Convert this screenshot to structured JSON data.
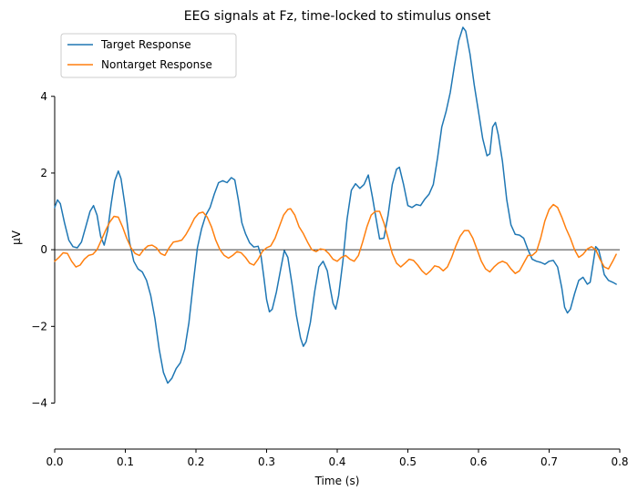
{
  "chart_data": {
    "type": "line",
    "title": "EEG signals at Fz, time-locked to stimulus onset",
    "xlabel": "Time (s)",
    "ylabel": "μV",
    "xlim": [
      0.0,
      0.8
    ],
    "ylim": [
      -5.2,
      5.8
    ],
    "xticks": [
      "0.0",
      "0.1",
      "0.2",
      "0.3",
      "0.4",
      "0.5",
      "0.6",
      "0.7",
      "0.8"
    ],
    "xtick_values": [
      0.0,
      0.1,
      0.2,
      0.3,
      0.4,
      0.5,
      0.6,
      0.7,
      0.8
    ],
    "yticks": [
      "−4",
      "−2",
      "0",
      "2",
      "4"
    ],
    "ytick_values": [
      -4,
      -2,
      0,
      2,
      4
    ],
    "grid": false,
    "zero_line": true,
    "legend_position": "top-left",
    "series": [
      {
        "name": "Target Response",
        "color": "#1f77b4",
        "points": [
          [
            0.0,
            1.1
          ],
          [
            0.004,
            1.3
          ],
          [
            0.008,
            1.2
          ],
          [
            0.014,
            0.7
          ],
          [
            0.02,
            0.25
          ],
          [
            0.026,
            0.08
          ],
          [
            0.032,
            0.05
          ],
          [
            0.038,
            0.2
          ],
          [
            0.044,
            0.6
          ],
          [
            0.05,
            1.0
          ],
          [
            0.055,
            1.15
          ],
          [
            0.06,
            0.9
          ],
          [
            0.065,
            0.35
          ],
          [
            0.07,
            0.12
          ],
          [
            0.075,
            0.5
          ],
          [
            0.08,
            1.2
          ],
          [
            0.085,
            1.8
          ],
          [
            0.09,
            2.05
          ],
          [
            0.094,
            1.85
          ],
          [
            0.1,
            1.1
          ],
          [
            0.106,
            0.2
          ],
          [
            0.112,
            -0.3
          ],
          [
            0.118,
            -0.5
          ],
          [
            0.124,
            -0.58
          ],
          [
            0.13,
            -0.8
          ],
          [
            0.136,
            -1.2
          ],
          [
            0.142,
            -1.8
          ],
          [
            0.148,
            -2.6
          ],
          [
            0.154,
            -3.2
          ],
          [
            0.16,
            -3.48
          ],
          [
            0.166,
            -3.35
          ],
          [
            0.172,
            -3.1
          ],
          [
            0.178,
            -2.95
          ],
          [
            0.184,
            -2.6
          ],
          [
            0.19,
            -1.9
          ],
          [
            0.196,
            -0.9
          ],
          [
            0.202,
            0.05
          ],
          [
            0.208,
            0.55
          ],
          [
            0.214,
            0.9
          ],
          [
            0.22,
            1.1
          ],
          [
            0.226,
            1.45
          ],
          [
            0.232,
            1.75
          ],
          [
            0.238,
            1.8
          ],
          [
            0.244,
            1.75
          ],
          [
            0.25,
            1.88
          ],
          [
            0.255,
            1.82
          ],
          [
            0.26,
            1.3
          ],
          [
            0.265,
            0.7
          ],
          [
            0.27,
            0.42
          ],
          [
            0.276,
            0.18
          ],
          [
            0.282,
            0.07
          ],
          [
            0.288,
            0.09
          ],
          [
            0.292,
            -0.15
          ],
          [
            0.296,
            -0.7
          ],
          [
            0.3,
            -1.3
          ],
          [
            0.304,
            -1.62
          ],
          [
            0.308,
            -1.55
          ],
          [
            0.314,
            -1.1
          ],
          [
            0.32,
            -0.5
          ],
          [
            0.325,
            -0.02
          ],
          [
            0.33,
            -0.2
          ],
          [
            0.336,
            -0.9
          ],
          [
            0.342,
            -1.7
          ],
          [
            0.348,
            -2.3
          ],
          [
            0.352,
            -2.52
          ],
          [
            0.356,
            -2.4
          ],
          [
            0.362,
            -1.9
          ],
          [
            0.368,
            -1.1
          ],
          [
            0.374,
            -0.45
          ],
          [
            0.38,
            -0.3
          ],
          [
            0.386,
            -0.55
          ],
          [
            0.39,
            -1.0
          ],
          [
            0.394,
            -1.4
          ],
          [
            0.398,
            -1.55
          ],
          [
            0.402,
            -1.2
          ],
          [
            0.408,
            -0.3
          ],
          [
            0.414,
            0.8
          ],
          [
            0.42,
            1.55
          ],
          [
            0.426,
            1.72
          ],
          [
            0.432,
            1.6
          ],
          [
            0.438,
            1.7
          ],
          [
            0.444,
            1.95
          ],
          [
            0.45,
            1.35
          ],
          [
            0.456,
            0.7
          ],
          [
            0.46,
            0.28
          ],
          [
            0.466,
            0.3
          ],
          [
            0.472,
            0.9
          ],
          [
            0.478,
            1.7
          ],
          [
            0.484,
            2.1
          ],
          [
            0.488,
            2.15
          ],
          [
            0.494,
            1.7
          ],
          [
            0.5,
            1.15
          ],
          [
            0.506,
            1.1
          ],
          [
            0.512,
            1.18
          ],
          [
            0.518,
            1.15
          ],
          [
            0.524,
            1.32
          ],
          [
            0.53,
            1.45
          ],
          [
            0.536,
            1.7
          ],
          [
            0.542,
            2.4
          ],
          [
            0.548,
            3.2
          ],
          [
            0.554,
            3.6
          ],
          [
            0.56,
            4.1
          ],
          [
            0.566,
            4.8
          ],
          [
            0.572,
            5.45
          ],
          [
            0.578,
            5.8
          ],
          [
            0.582,
            5.7
          ],
          [
            0.588,
            5.1
          ],
          [
            0.594,
            4.3
          ],
          [
            0.6,
            3.6
          ],
          [
            0.606,
            2.9
          ],
          [
            0.612,
            2.45
          ],
          [
            0.616,
            2.5
          ],
          [
            0.62,
            3.2
          ],
          [
            0.624,
            3.32
          ],
          [
            0.628,
            3.0
          ],
          [
            0.634,
            2.3
          ],
          [
            0.64,
            1.3
          ],
          [
            0.646,
            0.65
          ],
          [
            0.652,
            0.4
          ],
          [
            0.658,
            0.38
          ],
          [
            0.664,
            0.3
          ],
          [
            0.67,
            0.0
          ],
          [
            0.676,
            -0.25
          ],
          [
            0.682,
            -0.3
          ],
          [
            0.688,
            -0.33
          ],
          [
            0.694,
            -0.38
          ],
          [
            0.7,
            -0.3
          ],
          [
            0.706,
            -0.28
          ],
          [
            0.712,
            -0.45
          ],
          [
            0.718,
            -1.0
          ],
          [
            0.722,
            -1.5
          ],
          [
            0.726,
            -1.65
          ],
          [
            0.73,
            -1.55
          ],
          [
            0.736,
            -1.15
          ],
          [
            0.742,
            -0.8
          ],
          [
            0.748,
            -0.72
          ],
          [
            0.754,
            -0.9
          ],
          [
            0.758,
            -0.85
          ],
          [
            0.762,
            -0.4
          ],
          [
            0.766,
            0.08
          ],
          [
            0.77,
            0.0
          ],
          [
            0.774,
            -0.3
          ],
          [
            0.778,
            -0.65
          ],
          [
            0.784,
            -0.8
          ],
          [
            0.79,
            -0.85
          ],
          [
            0.795,
            -0.9
          ]
        ]
      },
      {
        "name": "Nontarget Response",
        "color": "#ff7f0e",
        "points": [
          [
            0.0,
            -0.3
          ],
          [
            0.006,
            -0.2
          ],
          [
            0.012,
            -0.08
          ],
          [
            0.018,
            -0.1
          ],
          [
            0.024,
            -0.3
          ],
          [
            0.03,
            -0.45
          ],
          [
            0.036,
            -0.4
          ],
          [
            0.042,
            -0.25
          ],
          [
            0.048,
            -0.15
          ],
          [
            0.054,
            -0.12
          ],
          [
            0.06,
            0.0
          ],
          [
            0.066,
            0.25
          ],
          [
            0.072,
            0.5
          ],
          [
            0.078,
            0.72
          ],
          [
            0.084,
            0.87
          ],
          [
            0.09,
            0.85
          ],
          [
            0.096,
            0.6
          ],
          [
            0.102,
            0.3
          ],
          [
            0.108,
            0.05
          ],
          [
            0.114,
            -0.1
          ],
          [
            0.12,
            -0.15
          ],
          [
            0.126,
            0.0
          ],
          [
            0.132,
            0.1
          ],
          [
            0.138,
            0.12
          ],
          [
            0.144,
            0.05
          ],
          [
            0.15,
            -0.1
          ],
          [
            0.156,
            -0.15
          ],
          [
            0.162,
            0.05
          ],
          [
            0.168,
            0.2
          ],
          [
            0.174,
            0.22
          ],
          [
            0.18,
            0.25
          ],
          [
            0.186,
            0.4
          ],
          [
            0.192,
            0.6
          ],
          [
            0.198,
            0.82
          ],
          [
            0.204,
            0.95
          ],
          [
            0.21,
            0.98
          ],
          [
            0.216,
            0.85
          ],
          [
            0.222,
            0.6
          ],
          [
            0.228,
            0.25
          ],
          [
            0.234,
            0.0
          ],
          [
            0.24,
            -0.15
          ],
          [
            0.246,
            -0.22
          ],
          [
            0.252,
            -0.15
          ],
          [
            0.258,
            -0.05
          ],
          [
            0.264,
            -0.08
          ],
          [
            0.27,
            -0.2
          ],
          [
            0.276,
            -0.35
          ],
          [
            0.282,
            -0.4
          ],
          [
            0.288,
            -0.25
          ],
          [
            0.294,
            -0.05
          ],
          [
            0.3,
            0.05
          ],
          [
            0.306,
            0.1
          ],
          [
            0.312,
            0.3
          ],
          [
            0.318,
            0.6
          ],
          [
            0.324,
            0.9
          ],
          [
            0.33,
            1.05
          ],
          [
            0.334,
            1.07
          ],
          [
            0.34,
            0.9
          ],
          [
            0.346,
            0.6
          ],
          [
            0.352,
            0.42
          ],
          [
            0.358,
            0.2
          ],
          [
            0.364,
            0.0
          ],
          [
            0.37,
            -0.05
          ],
          [
            0.376,
            0.02
          ],
          [
            0.382,
            0.0
          ],
          [
            0.388,
            -0.1
          ],
          [
            0.394,
            -0.25
          ],
          [
            0.4,
            -0.3
          ],
          [
            0.406,
            -0.2
          ],
          [
            0.412,
            -0.15
          ],
          [
            0.418,
            -0.25
          ],
          [
            0.424,
            -0.3
          ],
          [
            0.43,
            -0.15
          ],
          [
            0.436,
            0.2
          ],
          [
            0.442,
            0.6
          ],
          [
            0.448,
            0.9
          ],
          [
            0.454,
            1.0
          ],
          [
            0.46,
            1.0
          ],
          [
            0.466,
            0.7
          ],
          [
            0.472,
            0.3
          ],
          [
            0.478,
            -0.1
          ],
          [
            0.484,
            -0.35
          ],
          [
            0.49,
            -0.45
          ],
          [
            0.496,
            -0.35
          ],
          [
            0.502,
            -0.25
          ],
          [
            0.508,
            -0.28
          ],
          [
            0.514,
            -0.4
          ],
          [
            0.52,
            -0.55
          ],
          [
            0.526,
            -0.65
          ],
          [
            0.532,
            -0.55
          ],
          [
            0.538,
            -0.42
          ],
          [
            0.544,
            -0.45
          ],
          [
            0.55,
            -0.55
          ],
          [
            0.556,
            -0.45
          ],
          [
            0.562,
            -0.2
          ],
          [
            0.568,
            0.1
          ],
          [
            0.574,
            0.35
          ],
          [
            0.58,
            0.5
          ],
          [
            0.586,
            0.5
          ],
          [
            0.592,
            0.3
          ],
          [
            0.598,
            0.0
          ],
          [
            0.604,
            -0.3
          ],
          [
            0.61,
            -0.5
          ],
          [
            0.616,
            -0.58
          ],
          [
            0.622,
            -0.45
          ],
          [
            0.628,
            -0.35
          ],
          [
            0.634,
            -0.3
          ],
          [
            0.64,
            -0.35
          ],
          [
            0.646,
            -0.5
          ],
          [
            0.652,
            -0.62
          ],
          [
            0.658,
            -0.55
          ],
          [
            0.664,
            -0.35
          ],
          [
            0.67,
            -0.15
          ],
          [
            0.676,
            -0.15
          ],
          [
            0.682,
            -0.05
          ],
          [
            0.688,
            0.3
          ],
          [
            0.694,
            0.75
          ],
          [
            0.7,
            1.05
          ],
          [
            0.706,
            1.18
          ],
          [
            0.712,
            1.1
          ],
          [
            0.718,
            0.85
          ],
          [
            0.724,
            0.55
          ],
          [
            0.73,
            0.3
          ],
          [
            0.736,
            0.0
          ],
          [
            0.742,
            -0.2
          ],
          [
            0.748,
            -0.12
          ],
          [
            0.754,
            0.02
          ],
          [
            0.76,
            0.08
          ],
          [
            0.766,
            0.0
          ],
          [
            0.772,
            -0.25
          ],
          [
            0.778,
            -0.45
          ],
          [
            0.784,
            -0.5
          ],
          [
            0.79,
            -0.3
          ],
          [
            0.795,
            -0.12
          ]
        ]
      }
    ]
  }
}
